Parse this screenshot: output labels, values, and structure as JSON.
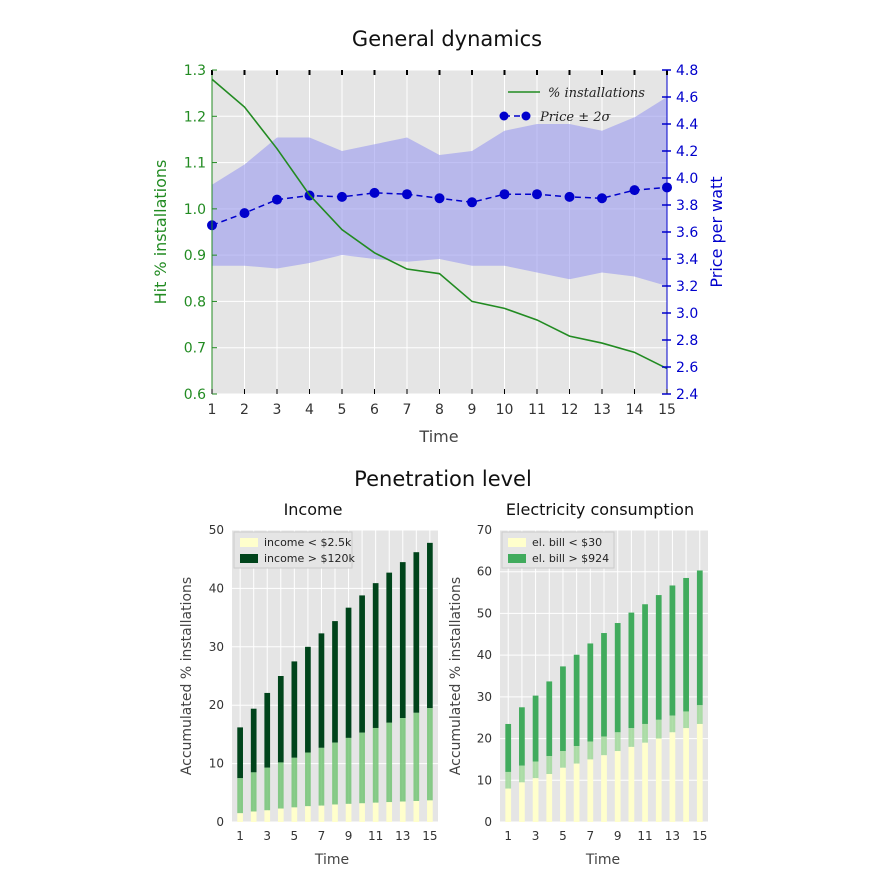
{
  "figure": {
    "heading_top": "General dynamics",
    "heading_bottom": "Penetration level"
  },
  "colors": {
    "green_axis": "#228b22",
    "blue_axis": "#0000cc",
    "band": "#9999ee",
    "plot_bg": "#e5e5e5",
    "grid": "#ffffff",
    "light_bar": "#ffffcc",
    "dark_green_bar": "#00441b",
    "mid_green_bar": "#41ab5d"
  },
  "chart_data": [
    {
      "type": "line",
      "title": "General dynamics",
      "xlabel": "Time",
      "ylabel": "Hit % installations",
      "ylabel_right": "Price per watt",
      "x": [
        1,
        2,
        3,
        4,
        5,
        6,
        7,
        8,
        9,
        10,
        11,
        12,
        13,
        14,
        15
      ],
      "xlim": [
        1,
        15
      ],
      "ylim": [
        0.6,
        1.3
      ],
      "ylim_right": [
        2.4,
        4.8
      ],
      "yticks": [
        "0.6",
        "0.7",
        "0.8",
        "0.9",
        "1.0",
        "1.1",
        "1.2",
        "1.3"
      ],
      "yticks_right": [
        "2.4",
        "2.6",
        "2.8",
        "3.0",
        "3.2",
        "3.4",
        "3.6",
        "3.8",
        "4.0",
        "4.2",
        "4.4",
        "4.6",
        "4.8"
      ],
      "xticks": [
        "1",
        "2",
        "3",
        "4",
        "5",
        "6",
        "7",
        "8",
        "9",
        "10",
        "11",
        "12",
        "13",
        "14",
        "15"
      ],
      "legend_position": "top-right",
      "series": [
        {
          "name": "% installations",
          "axis": "left",
          "style": "line",
          "values": [
            1.28,
            1.22,
            1.13,
            1.03,
            0.955,
            0.905,
            0.87,
            0.86,
            0.8,
            0.785,
            0.76,
            0.725,
            0.71,
            0.69,
            0.655
          ]
        },
        {
          "name": "Price ± 2σ",
          "axis": "right",
          "style": "dashed-markers",
          "values": [
            3.65,
            3.74,
            3.84,
            3.87,
            3.86,
            3.89,
            3.88,
            3.85,
            3.82,
            3.88,
            3.88,
            3.86,
            3.85,
            3.91,
            3.93
          ],
          "band_upper": [
            3.95,
            4.1,
            4.3,
            4.3,
            4.2,
            4.25,
            4.3,
            4.17,
            4.2,
            4.35,
            4.4,
            4.4,
            4.35,
            4.45,
            4.6
          ],
          "band_lower": [
            3.35,
            3.35,
            3.33,
            3.37,
            3.43,
            3.4,
            3.38,
            3.4,
            3.35,
            3.35,
            3.3,
            3.25,
            3.3,
            3.27,
            3.2
          ]
        }
      ]
    },
    {
      "type": "bar",
      "title": "Income",
      "xlabel": "Time",
      "ylabel": "Accumulated % installations",
      "x": [
        1,
        2,
        3,
        4,
        5,
        6,
        7,
        8,
        9,
        10,
        11,
        12,
        13,
        14,
        15
      ],
      "xticks": [
        "1",
        "3",
        "5",
        "7",
        "9",
        "11",
        "13",
        "15"
      ],
      "ylim": [
        0,
        50
      ],
      "yticks": [
        "0",
        "10",
        "20",
        "30",
        "40",
        "50"
      ],
      "legend_position": "top-left",
      "series": [
        {
          "name": "income < $2.5k",
          "values": [
            1.5,
            1.8,
            2.0,
            2.3,
            2.5,
            2.7,
            2.8,
            3.0,
            3.1,
            3.2,
            3.3,
            3.4,
            3.5,
            3.6,
            3.7
          ]
        },
        {
          "name": "income > $120k",
          "values": [
            16.2,
            19.4,
            22.1,
            25.0,
            27.5,
            30.0,
            32.3,
            34.4,
            36.7,
            38.8,
            40.9,
            42.7,
            44.5,
            46.2,
            47.8
          ]
        }
      ],
      "mid_band_top": [
        7.5,
        8.5,
        9.3,
        10.2,
        11.0,
        11.9,
        12.7,
        13.6,
        14.4,
        15.3,
        16.1,
        17.0,
        17.8,
        18.7,
        19.5
      ]
    },
    {
      "type": "bar",
      "title": "Electricity consumption",
      "xlabel": "Time",
      "ylabel": "Accumulated % installations",
      "x": [
        1,
        2,
        3,
        4,
        5,
        6,
        7,
        8,
        9,
        10,
        11,
        12,
        13,
        14,
        15
      ],
      "xticks": [
        "1",
        "3",
        "5",
        "7",
        "9",
        "11",
        "13",
        "15"
      ],
      "ylim": [
        0,
        70
      ],
      "yticks": [
        "0",
        "10",
        "20",
        "30",
        "40",
        "50",
        "60",
        "70"
      ],
      "legend_position": "top-left",
      "series": [
        {
          "name": "el. bill < $30",
          "values": [
            8.0,
            9.5,
            10.5,
            11.5,
            13.0,
            14.0,
            15.0,
            16.0,
            17.0,
            18.0,
            19.0,
            20.0,
            21.5,
            22.5,
            23.5
          ]
        },
        {
          "name": "el. bill > $924",
          "values": [
            23.5,
            27.5,
            30.3,
            33.7,
            37.3,
            40.1,
            42.8,
            45.3,
            47.7,
            50.2,
            52.2,
            54.4,
            56.7,
            58.5,
            60.3
          ]
        }
      ],
      "mid_band_top": [
        12.0,
        13.5,
        14.5,
        15.8,
        17.0,
        18.2,
        19.3,
        20.5,
        21.5,
        22.5,
        23.5,
        24.5,
        25.5,
        26.5,
        28.0
      ]
    }
  ]
}
